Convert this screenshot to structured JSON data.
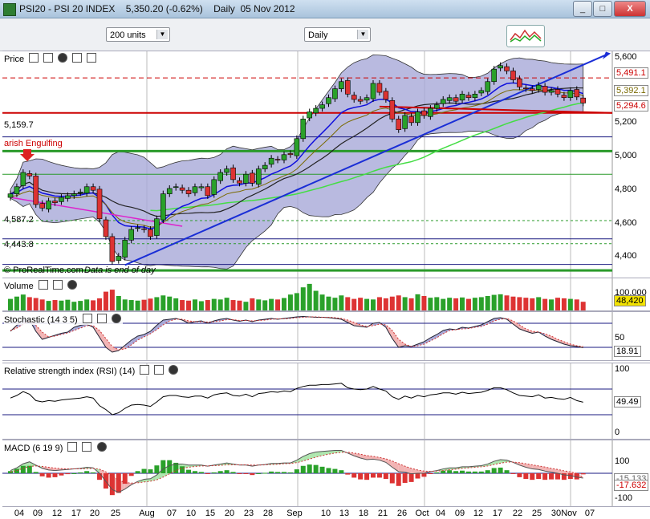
{
  "window": {
    "title": "PSI20 - PSI 20 INDEX    5,350.20 (-0.62%)    Daily  05 Nov 2012",
    "minimize": "_",
    "maximize": "□",
    "close": "X"
  },
  "toolbar": {
    "units_value": "200 units",
    "period_value": "Daily"
  },
  "price_panel": {
    "label": "Price",
    "y_ticks": [
      "5,600",
      "5,400",
      "5,200",
      "5,000",
      "4,800",
      "4,600",
      "4,400"
    ],
    "badges": [
      {
        "text": "5,491.1",
        "color": "#cc0000"
      },
      {
        "text": "5,392.1",
        "color": "#7a6a00"
      },
      {
        "text": "5,294.6",
        "color": "#cc0000"
      }
    ],
    "left_levels": [
      "5,159.7",
      "4,587.2",
      "4,443.8"
    ],
    "pattern_label": "arish Engulfing",
    "footer_source": "© ProRealTime.com",
    "footer_note": "Data is end of day"
  },
  "volume_panel": {
    "label": "Volume",
    "tick": "100,000",
    "badge": "48,420"
  },
  "stoch_panel": {
    "label": "Stochastic (14 3 5)",
    "tick": "50",
    "badge": "18.91"
  },
  "rsi_panel": {
    "label": "Relative strength index (RSI) (14)",
    "tick_top": "100",
    "tick_bottom": "0",
    "badge": "49.49"
  },
  "macd_panel": {
    "label": "MACD (6 19 9)",
    "tick_top": "100",
    "tick_bottom": "-100",
    "badge_signal": "-15.133",
    "badge_macd": "-17.632"
  },
  "x_axis": [
    {
      "t": "04",
      "x": 24
    },
    {
      "t": "09",
      "x": 47
    },
    {
      "t": "12",
      "x": 71
    },
    {
      "t": "17",
      "x": 95
    },
    {
      "t": "20",
      "x": 118
    },
    {
      "t": "25",
      "x": 144
    },
    {
      "t": "Aug",
      "x": 183
    },
    {
      "t": "07",
      "x": 214
    },
    {
      "t": "10",
      "x": 238
    },
    {
      "t": "15",
      "x": 262
    },
    {
      "t": "20",
      "x": 286
    },
    {
      "t": "23",
      "x": 310
    },
    {
      "t": "28",
      "x": 334
    },
    {
      "t": "Sep",
      "x": 367
    },
    {
      "t": "10",
      "x": 406
    },
    {
      "t": "13",
      "x": 429
    },
    {
      "t": "18",
      "x": 453
    },
    {
      "t": "21",
      "x": 477
    },
    {
      "t": "26",
      "x": 501
    },
    {
      "t": "Oct",
      "x": 526
    },
    {
      "t": "04",
      "x": 549
    },
    {
      "t": "09",
      "x": 573
    },
    {
      "t": "12",
      "x": 596
    },
    {
      "t": "17",
      "x": 620
    },
    {
      "t": "22",
      "x": 645
    },
    {
      "t": "25",
      "x": 669
    },
    {
      "t": "30",
      "x": 693
    },
    {
      "t": "Nov",
      "x": 709
    },
    {
      "t": "07",
      "x": 735
    }
  ],
  "chart_data": {
    "type": "candlestick",
    "symbol": "PSI20",
    "x_dates": [
      "2 Jul",
      "3 Jul",
      "4 Jul",
      "5 Jul",
      "6 Jul",
      "9 Jul",
      "10 Jul",
      "11 Jul",
      "12 Jul",
      "13 Jul",
      "16 Jul",
      "17 Jul",
      "18 Jul",
      "19 Jul",
      "20 Jul",
      "23 Jul",
      "24 Jul",
      "25 Jul",
      "26 Jul",
      "27 Jul",
      "30 Jul",
      "31 Jul",
      "1 Aug",
      "2 Aug",
      "3 Aug",
      "6 Aug",
      "7 Aug",
      "8 Aug",
      "9 Aug",
      "10 Aug",
      "13 Aug",
      "14 Aug",
      "15 Aug",
      "16 Aug",
      "17 Aug",
      "20 Aug",
      "21 Aug",
      "22 Aug",
      "23 Aug",
      "24 Aug",
      "27 Aug",
      "28 Aug",
      "29 Aug",
      "30 Aug",
      "31 Aug",
      "3 Sep",
      "4 Sep",
      "5 Sep",
      "6 Sep",
      "7 Sep",
      "10 Sep",
      "11 Sep",
      "12 Sep",
      "13 Sep",
      "14 Sep",
      "17 Sep",
      "18 Sep",
      "19 Sep",
      "20 Sep",
      "21 Sep",
      "24 Sep",
      "25 Sep",
      "26 Sep",
      "27 Sep",
      "28 Sep",
      "1 Oct",
      "2 Oct",
      "3 Oct",
      "4 Oct",
      "5 Oct",
      "8 Oct",
      "9 Oct",
      "10 Oct",
      "11 Oct",
      "12 Oct",
      "15 Oct",
      "16 Oct",
      "17 Oct",
      "18 Oct",
      "19 Oct",
      "22 Oct",
      "23 Oct",
      "24 Oct",
      "25 Oct",
      "26 Oct",
      "29 Oct",
      "30 Oct",
      "31 Oct",
      "1 Nov",
      "2 Nov",
      "5 Nov"
    ],
    "close": [
      4840,
      4880,
      4960,
      4940,
      4780,
      4760,
      4800,
      4790,
      4820,
      4830,
      4840,
      4850,
      4880,
      4860,
      4700,
      4600,
      4460,
      4490,
      4580,
      4640,
      4650,
      4640,
      4600,
      4700,
      4840,
      4870,
      4880,
      4860,
      4840,
      4880,
      4880,
      4830,
      4920,
      4960,
      4980,
      4920,
      4900,
      4950,
      4900,
      4980,
      5000,
      5040,
      5030,
      5060,
      5060,
      5150,
      5260,
      5300,
      5320,
      5340,
      5380,
      5430,
      5470,
      5400,
      5370,
      5360,
      5380,
      5460,
      5410,
      5370,
      5260,
      5200,
      5280,
      5240,
      5300,
      5280,
      5320,
      5340,
      5370,
      5380,
      5360,
      5400,
      5380,
      5400,
      5420,
      5470,
      5540,
      5560,
      5530,
      5480,
      5440,
      5430,
      5420,
      5450,
      5410,
      5420,
      5400,
      5380,
      5420,
      5384,
      5350
    ],
    "volume": [
      40,
      48,
      55,
      46,
      43,
      38,
      33,
      36,
      34,
      37,
      30,
      33,
      38,
      35,
      42,
      65,
      72,
      50,
      38,
      36,
      34,
      37,
      41,
      46,
      52,
      48,
      42,
      36,
      34,
      38,
      32,
      36,
      40,
      38,
      44,
      36,
      34,
      30,
      42,
      38,
      35,
      40,
      38,
      43,
      55,
      60,
      80,
      92,
      68,
      55,
      48,
      44,
      52,
      46,
      40,
      44,
      40,
      38,
      46,
      42,
      48,
      52,
      46,
      42,
      56,
      50,
      44,
      46,
      40,
      44,
      42,
      45,
      40,
      44,
      46,
      50,
      54,
      56,
      52,
      48,
      46,
      44,
      42,
      46,
      40,
      38,
      44,
      42,
      40,
      38,
      30
    ],
    "stochastic_k": [
      60,
      75,
      90,
      88,
      60,
      40,
      45,
      50,
      55,
      58,
      70,
      75,
      78,
      70,
      45,
      20,
      8,
      12,
      25,
      38,
      48,
      52,
      60,
      75,
      88,
      90,
      92,
      88,
      80,
      84,
      86,
      80,
      86,
      90,
      92,
      88,
      85,
      88,
      84,
      88,
      90,
      92,
      90,
      92,
      94,
      96,
      97,
      96,
      95,
      95,
      94,
      92,
      90,
      82,
      74,
      72,
      70,
      80,
      82,
      70,
      42,
      20,
      24,
      22,
      28,
      34,
      44,
      52,
      62,
      66,
      64,
      70,
      68,
      72,
      76,
      84,
      92,
      94,
      90,
      78,
      66,
      60,
      55,
      58,
      48,
      40,
      34,
      28,
      24,
      22,
      19
    ],
    "stochastic_d": [
      62,
      68,
      78,
      86,
      75,
      58,
      46,
      48,
      52,
      56,
      62,
      68,
      74,
      74,
      62,
      42,
      22,
      14,
      16,
      26,
      38,
      46,
      54,
      64,
      76,
      86,
      90,
      90,
      86,
      84,
      84,
      83,
      84,
      86,
      89,
      89,
      87,
      87,
      86,
      87,
      88,
      90,
      91,
      91,
      92,
      94,
      95,
      96,
      96,
      95,
      95,
      94,
      92,
      88,
      82,
      76,
      72,
      74,
      78,
      76,
      62,
      40,
      28,
      22,
      24,
      28,
      36,
      44,
      54,
      62,
      64,
      66,
      67,
      70,
      72,
      78,
      86,
      90,
      92,
      86,
      76,
      66,
      60,
      58,
      54,
      48,
      40,
      34,
      28,
      24,
      22
    ],
    "rsi": [
      56,
      60,
      66,
      62,
      52,
      50,
      52,
      51,
      53,
      54,
      55,
      56,
      58,
      56,
      44,
      38,
      30,
      33,
      40,
      45,
      46,
      45,
      43,
      50,
      58,
      60,
      60,
      58,
      57,
      59,
      59,
      56,
      61,
      63,
      64,
      60,
      59,
      62,
      58,
      63,
      64,
      66,
      65,
      67,
      66,
      71,
      74,
      76,
      76,
      77,
      77,
      78,
      79,
      72,
      70,
      69,
      70,
      74,
      70,
      67,
      58,
      54,
      59,
      56,
      60,
      58,
      61,
      62,
      64,
      64,
      62,
      65,
      63,
      64,
      65,
      68,
      72,
      72,
      69,
      64,
      60,
      59,
      58,
      61,
      56,
      57,
      55,
      54,
      57,
      52,
      49.49
    ],
    "macd_line": [
      10,
      20,
      35,
      42,
      30,
      18,
      12,
      10,
      12,
      14,
      16,
      18,
      22,
      20,
      0,
      -30,
      -60,
      -70,
      -58,
      -42,
      -30,
      -22,
      -20,
      -6,
      16,
      28,
      34,
      34,
      30,
      30,
      30,
      26,
      30,
      34,
      38,
      34,
      30,
      30,
      26,
      30,
      32,
      36,
      36,
      38,
      38,
      48,
      62,
      72,
      78,
      80,
      82,
      84,
      84,
      74,
      64,
      56,
      50,
      52,
      48,
      40,
      22,
      6,
      4,
      -2,
      0,
      0,
      6,
      10,
      16,
      20,
      20,
      24,
      24,
      26,
      28,
      34,
      44,
      50,
      48,
      40,
      30,
      22,
      16,
      14,
      8,
      4,
      0,
      -6,
      -8,
      -14,
      -17.632
    ],
    "macd_signal": [
      5,
      10,
      18,
      25,
      27,
      25,
      22,
      19,
      17,
      16,
      16,
      16,
      17,
      18,
      15,
      5,
      -10,
      -25,
      -34,
      -36,
      -35,
      -32,
      -29,
      -24,
      -14,
      -2,
      10,
      18,
      22,
      25,
      27,
      27,
      28,
      29,
      31,
      31,
      31,
      31,
      30,
      30,
      31,
      32,
      33,
      35,
      36,
      39,
      45,
      52,
      59,
      65,
      70,
      74,
      77,
      77,
      74,
      70,
      65,
      62,
      58,
      53,
      45,
      35,
      26,
      18,
      12,
      8,
      7,
      8,
      10,
      13,
      15,
      18,
      20,
      22,
      24,
      27,
      32,
      37,
      41,
      41,
      39,
      35,
      31,
      27,
      23,
      18,
      14,
      9,
      5,
      0,
      -15.133
    ],
    "overlays": {
      "bollinger_bands": true,
      "moving_averages": [
        "blue",
        "dark",
        "olive",
        "green",
        "magenta"
      ],
      "trendline": "rising blue line from late Jul toward Nov",
      "horizontal_levels": [
        5491.1,
        5294.6,
        5159.7,
        4587.2,
        4443.8
      ]
    },
    "y_range_price": [
      4370,
      5640
    ],
    "grid": "vertical month separators"
  }
}
